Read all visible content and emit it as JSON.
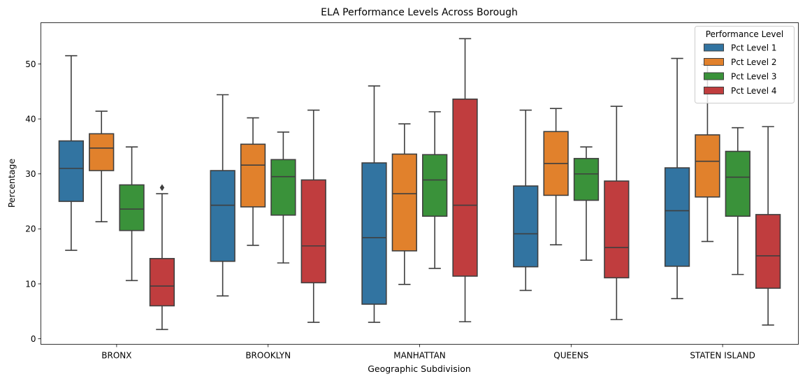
{
  "chart_data": {
    "type": "box",
    "title": "ELA Performance Levels Across Borough",
    "xlabel": "Geographic Subdivision",
    "ylabel": "Percentage",
    "ylim": [
      -1,
      57.5
    ],
    "yticks": [
      0,
      10,
      20,
      30,
      40,
      50
    ],
    "grid": false,
    "legend": {
      "title": "Performance Level",
      "placement": "top-right"
    },
    "categories": [
      "BRONX",
      "BROOKLYN",
      "MANHATTAN",
      "QUEENS",
      "STATEN ISLAND"
    ],
    "series": [
      {
        "name": "Pct Level 1",
        "color": "#3274a1",
        "boxes": [
          {
            "whisker_low": 16.1,
            "q1": 25.0,
            "median": 31.0,
            "q3": 36.0,
            "whisker_high": 51.5,
            "outliers": []
          },
          {
            "whisker_low": 7.8,
            "q1": 14.1,
            "median": 24.3,
            "q3": 30.6,
            "whisker_high": 44.4,
            "outliers": []
          },
          {
            "whisker_low": 3.0,
            "q1": 6.3,
            "median": 18.4,
            "q3": 32.0,
            "whisker_high": 46.0,
            "outliers": []
          },
          {
            "whisker_low": 8.8,
            "q1": 13.1,
            "median": 19.1,
            "q3": 27.8,
            "whisker_high": 41.6,
            "outliers": []
          },
          {
            "whisker_low": 7.3,
            "q1": 13.2,
            "median": 23.3,
            "q3": 31.1,
            "whisker_high": 51.0,
            "outliers": []
          }
        ]
      },
      {
        "name": "Pct Level 2",
        "color": "#e1812c",
        "boxes": [
          {
            "whisker_low": 21.3,
            "q1": 30.6,
            "median": 34.7,
            "q3": 37.3,
            "whisker_high": 41.4,
            "outliers": []
          },
          {
            "whisker_low": 17.0,
            "q1": 24.0,
            "median": 31.6,
            "q3": 35.4,
            "whisker_high": 40.2,
            "outliers": []
          },
          {
            "whisker_low": 9.9,
            "q1": 16.0,
            "median": 26.4,
            "q3": 33.6,
            "whisker_high": 39.1,
            "outliers": []
          },
          {
            "whisker_low": 17.1,
            "q1": 26.1,
            "median": 31.9,
            "q3": 37.7,
            "whisker_high": 41.9,
            "outliers": []
          },
          {
            "whisker_low": 17.7,
            "q1": 25.8,
            "median": 32.3,
            "q3": 37.1,
            "whisker_high": 49.9,
            "outliers": []
          }
        ]
      },
      {
        "name": "Pct Level 3",
        "color": "#3a923a",
        "boxes": [
          {
            "whisker_low": 10.6,
            "q1": 19.7,
            "median": 23.6,
            "q3": 28.0,
            "whisker_high": 34.9,
            "outliers": []
          },
          {
            "whisker_low": 13.8,
            "q1": 22.5,
            "median": 29.5,
            "q3": 32.6,
            "whisker_high": 37.6,
            "outliers": []
          },
          {
            "whisker_low": 12.8,
            "q1": 22.3,
            "median": 28.9,
            "q3": 33.5,
            "whisker_high": 41.3,
            "outliers": []
          },
          {
            "whisker_low": 14.3,
            "q1": 25.2,
            "median": 30.0,
            "q3": 32.8,
            "whisker_high": 34.9,
            "outliers": []
          },
          {
            "whisker_low": 11.7,
            "q1": 22.3,
            "median": 29.4,
            "q3": 34.1,
            "whisker_high": 38.4,
            "outliers": []
          }
        ]
      },
      {
        "name": "Pct Level 4",
        "color": "#c03d3e",
        "boxes": [
          {
            "whisker_low": 1.7,
            "q1": 6.0,
            "median": 9.6,
            "q3": 14.6,
            "whisker_high": 26.4,
            "outliers": [
              27.5
            ]
          },
          {
            "whisker_low": 3.0,
            "q1": 10.2,
            "median": 16.9,
            "q3": 28.9,
            "whisker_high": 41.6,
            "outliers": []
          },
          {
            "whisker_low": 3.1,
            "q1": 11.4,
            "median": 24.3,
            "q3": 43.6,
            "whisker_high": 54.6,
            "outliers": []
          },
          {
            "whisker_low": 3.5,
            "q1": 11.1,
            "median": 16.6,
            "q3": 28.7,
            "whisker_high": 42.3,
            "outliers": []
          },
          {
            "whisker_low": 2.5,
            "q1": 9.2,
            "median": 15.1,
            "q3": 22.6,
            "whisker_high": 38.6,
            "outliers": []
          }
        ]
      }
    ]
  }
}
